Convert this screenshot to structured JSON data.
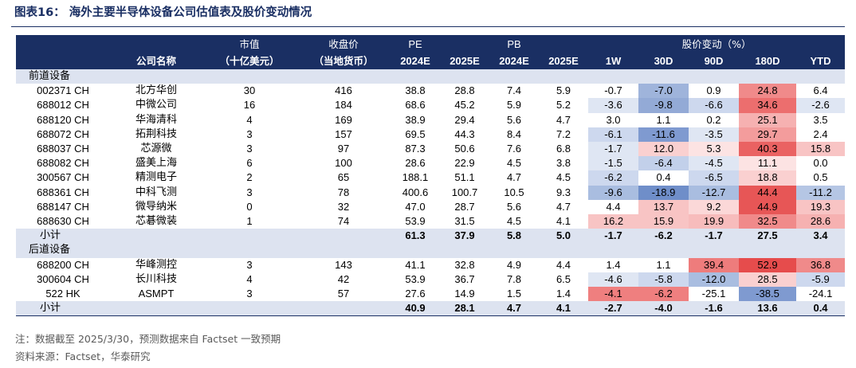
{
  "title": "图表16： 海外主要半导体设备公司估值表及股价变动情况",
  "header": {
    "row1": [
      "",
      "",
      "市值",
      "收盘价",
      "PE",
      "",
      "PB",
      "",
      "股价变动（%）",
      "",
      "",
      "",
      ""
    ],
    "row2": [
      "",
      "公司名称",
      "（十亿美元）",
      "（当地货币）",
      "2024E",
      "2025E",
      "2024E",
      "2025E",
      "1W",
      "30D",
      "90D",
      "180D",
      "YTD"
    ]
  },
  "sections": [
    {
      "label": "前道设备",
      "rows": [
        [
          "002371 CH",
          "北方华创",
          "30",
          "416",
          "38.8",
          "28.8",
          "7.4",
          "5.9",
          "-0.7",
          "-7.0",
          "0.9",
          "24.8",
          "6.4"
        ],
        [
          "688012 CH",
          "中微公司",
          "16",
          "184",
          "68.6",
          "45.2",
          "5.9",
          "5.2",
          "-3.6",
          "-9.8",
          "-6.6",
          "34.6",
          "-2.6"
        ],
        [
          "688120 CH",
          "华海清科",
          "4",
          "169",
          "38.9",
          "29.4",
          "5.6",
          "4.7",
          "3.0",
          "1.1",
          "0.2",
          "25.1",
          "3.5"
        ],
        [
          "688072 CH",
          "拓荆科技",
          "3",
          "157",
          "69.5",
          "44.3",
          "8.4",
          "7.2",
          "-6.1",
          "-11.6",
          "-3.5",
          "29.7",
          "2.4"
        ],
        [
          "688037 CH",
          "芯源微",
          "3",
          "97",
          "87.3",
          "50.6",
          "7.6",
          "6.8",
          "-1.7",
          "12.0",
          "5.3",
          "40.3",
          "15.8"
        ],
        [
          "688082 CH",
          "盛美上海",
          "6",
          "100",
          "28.6",
          "22.9",
          "4.5",
          "3.8",
          "-1.5",
          "-6.4",
          "-4.5",
          "11.1",
          "0.0"
        ],
        [
          "300567 CH",
          "精测电子",
          "2",
          "65",
          "188.1",
          "51.1",
          "4.7",
          "4.5",
          "-6.2",
          "0.4",
          "-6.5",
          "18.8",
          "0.5"
        ],
        [
          "688361 CH",
          "中科飞测",
          "3",
          "78",
          "400.6",
          "100.7",
          "10.5",
          "9.3",
          "-9.6",
          "-18.9",
          "-12.7",
          "44.4",
          "-11.2"
        ],
        [
          "688147 CH",
          "微导纳米",
          "0",
          "32",
          "47.0",
          "28.7",
          "5.6",
          "4.7",
          "4.4",
          "13.7",
          "9.2",
          "44.9",
          "19.3"
        ],
        [
          "688630 CH",
          "芯碁微装",
          "1",
          "74",
          "53.9",
          "31.5",
          "4.5",
          "4.1",
          "16.2",
          "15.9",
          "19.9",
          "32.5",
          "28.6"
        ]
      ],
      "subtotal": [
        "小计",
        "61.3",
        "37.9",
        "5.8",
        "5.0",
        "-1.7",
        "-6.2",
        "-1.7",
        "27.5",
        "3.4"
      ]
    },
    {
      "label": "后道设备",
      "rows": [
        [
          "688200 CH",
          "华峰测控",
          "3",
          "143",
          "41.1",
          "32.8",
          "4.9",
          "4.4",
          "1.4",
          "1.1",
          "39.4",
          "52.9",
          "36.8"
        ],
        [
          "300604 CH",
          "长川科技",
          "4",
          "42",
          "53.9",
          "36.7",
          "7.8",
          "6.5",
          "-4.6",
          "-5.8",
          "-12.0",
          "28.5",
          "-5.9"
        ],
        [
          "522 HK",
          "ASMPT",
          "3",
          "57",
          "27.6",
          "14.9",
          "1.5",
          "1.4",
          "-4.1",
          "-6.2",
          "-25.1",
          "-38.5",
          "-24.1"
        ]
      ],
      "subtotal": [
        "小计",
        "40.9",
        "28.1",
        "4.7",
        "4.1",
        "-2.7",
        "-4.0",
        "-1.6",
        "13.6",
        "0.4"
      ]
    }
  ],
  "cell_colors": {
    "0": [
      "",
      "#9fb4db",
      "",
      "#f08a8a",
      ""
    ],
    "1": [
      "#dfe6f3",
      "#93aad6",
      "#cdd8ee",
      "#ec6e6e",
      "#dfe6f3"
    ],
    "2": [
      "",
      "",
      "",
      "#f6b1b1",
      ""
    ],
    "3": [
      "#cdd8ee",
      "#7f9ad0",
      "#dfe6f3",
      "#f39c9c",
      ""
    ],
    "4": [
      "#dfe6f3",
      "#fad0d0",
      "#fce3e3",
      "#ea6262",
      "#f8c4c4"
    ],
    "5": [
      "#dfe6f3",
      "#c2d0ea",
      "#dfe6f3",
      "#fce3e3",
      ""
    ],
    "6": [
      "#cdd8ee",
      "",
      "#cdd8ee",
      "#fad0d0",
      ""
    ],
    "7": [
      "#a9bde0",
      "#6f8ec9",
      "#a9bde0",
      "#e75656",
      "#b5c6e4"
    ],
    "8": [
      "",
      "#f8c4c4",
      "#fbd8d8",
      "#e75656",
      "#f8c4c4"
    ],
    "9": [
      "#f8c4c4",
      "#f8c4c4",
      "#f7bcbc",
      "#f08a8a",
      "#f6b1b1"
    ],
    "11": [
      "",
      "",
      "#ee7c7c",
      "#e64c4c",
      "#f08a8a"
    ],
    "12": [
      "#dfe6f3",
      "#cdd8ee",
      "#a9bde0",
      "#fad0d0",
      "#cdd8ee"
    ],
    "13": [
      "#ef7f7f",
      "#ef7f7f",
      "",
      "#7f9ad0",
      ""
    ]
  },
  "notes": [
    "注：数据截至 2025/3/30，预测数据来自 Factset 一致预期",
    "资料来源：Factset，华泰研究"
  ]
}
